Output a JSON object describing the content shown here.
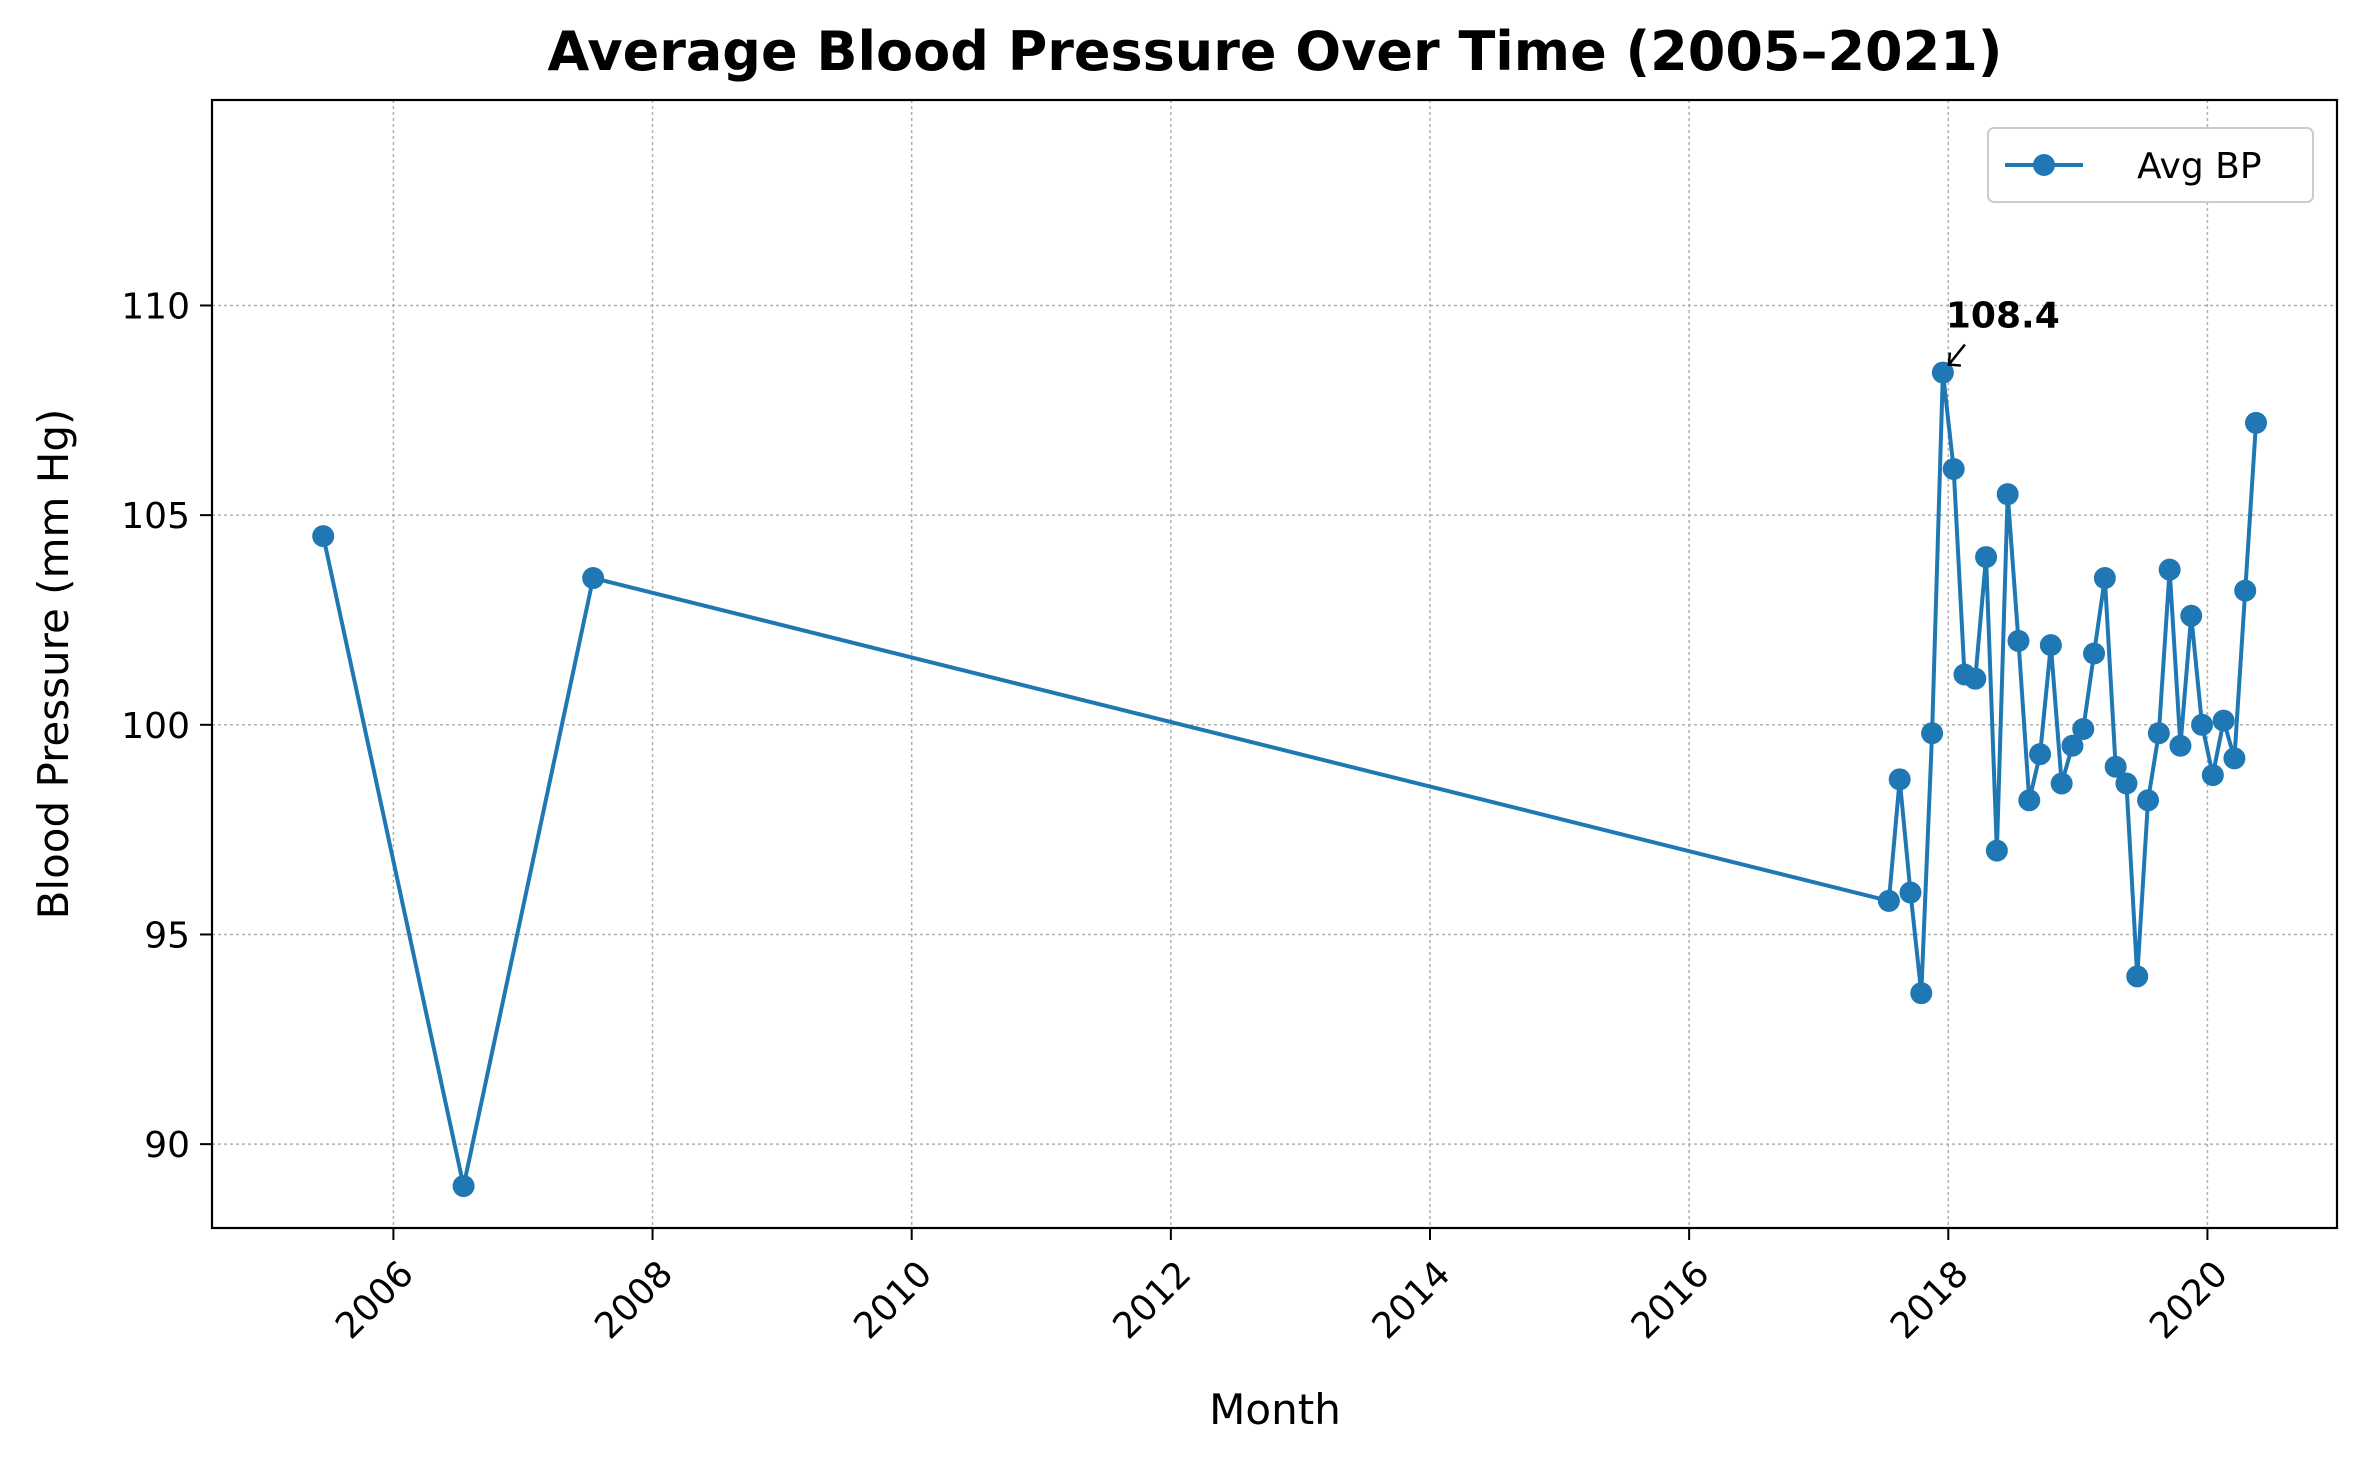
{
  "chart_data": {
    "type": "line",
    "title": "Average Blood Pressure Over Time (2005–2021)",
    "xlabel": "Month",
    "ylabel": "Blood Pressure (mm Hg)",
    "xlim": [
      2004.6,
      2021.0
    ],
    "ylim": [
      88.0,
      114.9
    ],
    "x_ticks": [
      2006,
      2008,
      2010,
      2012,
      2014,
      2016,
      2018,
      2020
    ],
    "y_ticks": [
      90,
      95,
      100,
      105,
      110
    ],
    "grid": true,
    "legend_position": "top-right",
    "color": "#1f77b4",
    "series": [
      {
        "name": "Avg BP",
        "x": [
          "2005-06",
          "2006-07",
          "2007-07",
          "2017-07",
          "2017-08",
          "2017-09",
          "2017-10",
          "2017-11",
          "2017-12",
          "2018-01",
          "2018-02",
          "2018-03",
          "2018-04",
          "2018-05",
          "2018-06",
          "2018-07",
          "2018-08",
          "2018-09",
          "2018-10",
          "2018-11",
          "2018-12",
          "2019-01",
          "2019-02",
          "2019-03",
          "2019-04",
          "2019-05",
          "2019-06",
          "2019-07",
          "2019-08",
          "2019-09",
          "2019-10",
          "2019-11",
          "2019-12",
          "2020-01",
          "2020-02",
          "2020-03",
          "2020-04",
          "2020-05"
        ],
        "y": [
          104.5,
          89.0,
          103.5,
          95.8,
          98.7,
          96.0,
          93.6,
          99.8,
          108.4,
          106.1,
          101.2,
          101.1,
          104.0,
          97.0,
          105.5,
          102.0,
          98.2,
          99.3,
          101.9,
          98.6,
          99.5,
          99.9,
          101.7,
          103.5,
          99.0,
          98.6,
          94.0,
          98.2,
          99.8,
          103.7,
          99.5,
          102.6,
          100.0,
          98.8,
          100.1,
          99.2,
          103.2,
          107.2
        ]
      }
    ],
    "annotations": [
      {
        "text": "108.4",
        "x": "2017-12",
        "y": 108.4
      }
    ]
  }
}
